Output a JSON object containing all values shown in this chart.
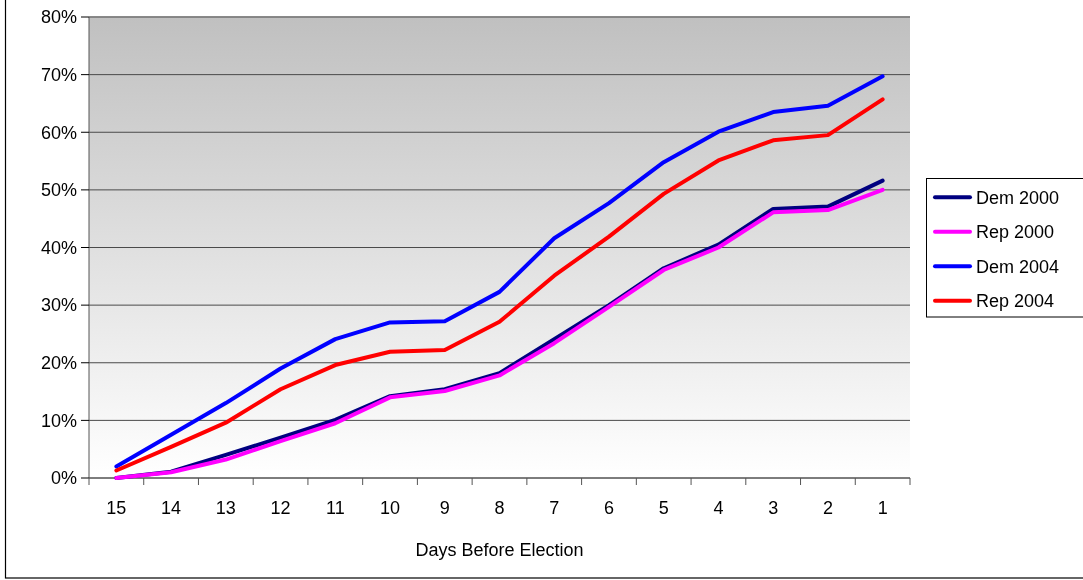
{
  "chart_data": {
    "type": "line",
    "categories": [
      "15",
      "14",
      "13",
      "12",
      "11",
      "10",
      "9",
      "8",
      "7",
      "6",
      "5",
      "4",
      "3",
      "2",
      "1"
    ],
    "xlabel": "Days Before Election",
    "ylim": [
      0,
      80
    ],
    "yticks": [
      {
        "value": 0,
        "label": "0%"
      },
      {
        "value": 10,
        "label": "10%"
      },
      {
        "value": 20,
        "label": "20%"
      },
      {
        "value": 30,
        "label": "30%"
      },
      {
        "value": 40,
        "label": "40%"
      },
      {
        "value": 50,
        "label": "50%"
      },
      {
        "value": 60,
        "label": "60%"
      },
      {
        "value": 70,
        "label": "70%"
      },
      {
        "value": 80,
        "label": "80%"
      }
    ],
    "grid": "y",
    "legend": "right",
    "series": [
      {
        "name": "Dem 2000",
        "color": "#000080",
        "values": [
          0.0,
          1.1,
          4.0,
          7.0,
          10.1,
          14.2,
          15.4,
          18.2,
          24.1,
          30.0,
          36.4,
          40.5,
          46.7,
          47.1,
          51.6
        ]
      },
      {
        "name": "Rep 2000",
        "color": "#ff00ff",
        "values": [
          0.0,
          1.0,
          3.2,
          6.4,
          9.5,
          14.0,
          15.1,
          17.8,
          23.4,
          29.7,
          36.1,
          40.0,
          46.1,
          46.5,
          50.0
        ]
      },
      {
        "name": "Dem 2004",
        "color": "#0000ff",
        "values": [
          2.0,
          7.5,
          13.0,
          19.0,
          24.1,
          27.0,
          27.2,
          32.3,
          41.6,
          47.7,
          54.8,
          60.1,
          63.5,
          64.6,
          69.7
        ]
      },
      {
        "name": "Rep 2004",
        "color": "#ff0000",
        "values": [
          1.3,
          5.4,
          9.6,
          15.4,
          19.6,
          21.9,
          22.2,
          27.1,
          35.1,
          41.9,
          49.3,
          55.1,
          58.6,
          59.5,
          65.7
        ]
      }
    ]
  }
}
